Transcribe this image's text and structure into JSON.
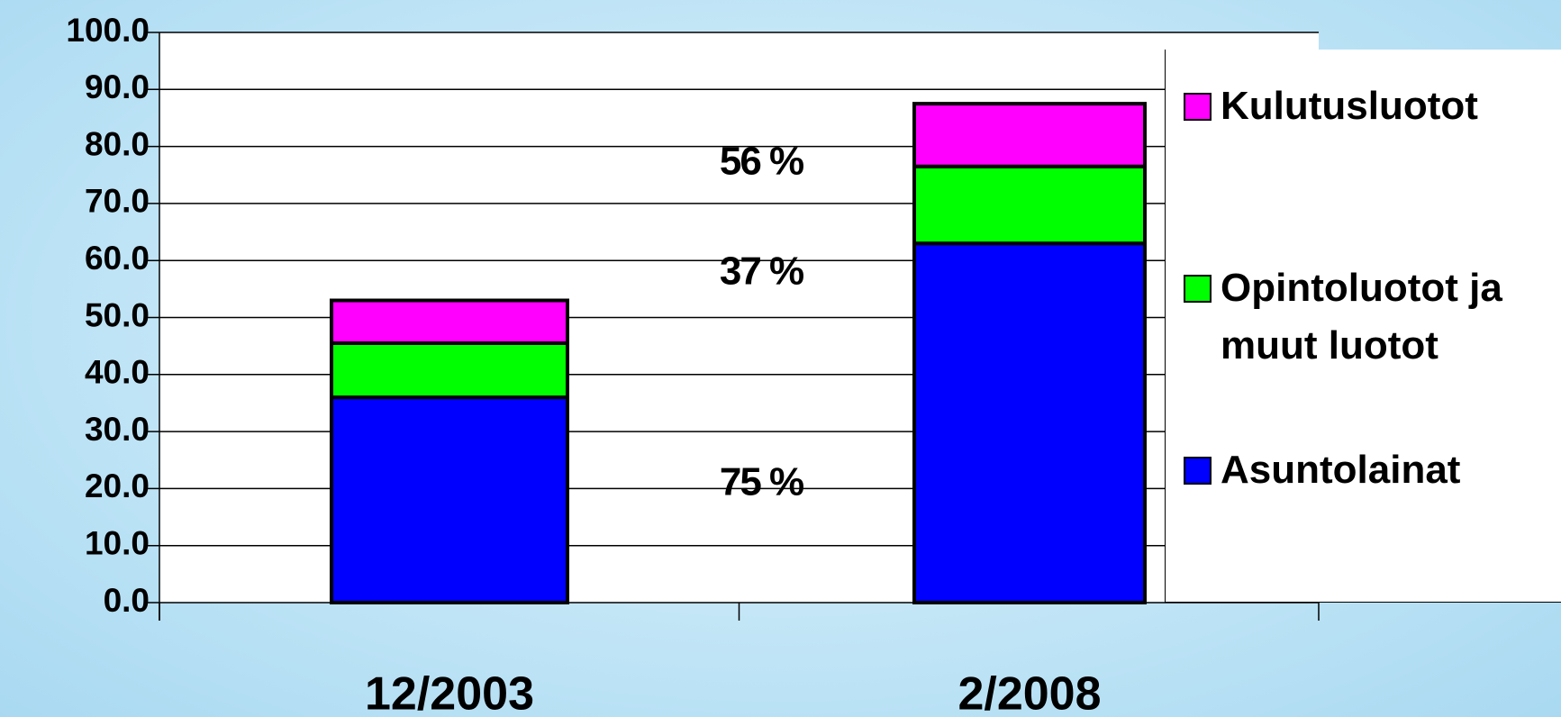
{
  "chart_data": {
    "type": "stacked_bar",
    "categories": [
      "12/2003",
      "2/2008"
    ],
    "series": [
      {
        "name": "Asuntolainat",
        "color": "#0000ff",
        "values": [
          36,
          63
        ]
      },
      {
        "name": "Opintoluotot ja muut luotot",
        "color": "#00ff00",
        "values": [
          9.5,
          13.5
        ]
      },
      {
        "name": "Kulutusluotot",
        "color": "#ff00ff",
        "values": [
          7.5,
          11
        ]
      }
    ],
    "annotations": [
      "75 %",
      "37 %",
      "56 %"
    ],
    "ylim": [
      0,
      100
    ],
    "yticks": [
      {
        "value": 0,
        "label": "0.0"
      },
      {
        "value": 10,
        "label": "10.0"
      },
      {
        "value": 20,
        "label": "20.0"
      },
      {
        "value": 30,
        "label": "30.0"
      },
      {
        "value": 40,
        "label": "40.0"
      },
      {
        "value": 50,
        "label": "50.0"
      },
      {
        "value": 60,
        "label": "60.0"
      },
      {
        "value": 70,
        "label": "70.0"
      },
      {
        "value": 80,
        "label": "80.0"
      },
      {
        "value": 90,
        "label": "90.0"
      },
      {
        "value": 100,
        "label": "100.0"
      }
    ],
    "grid": true
  }
}
